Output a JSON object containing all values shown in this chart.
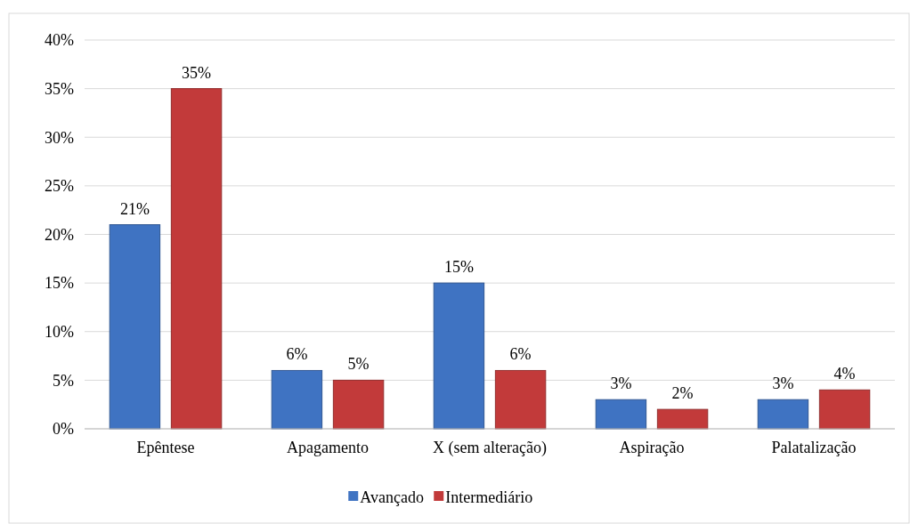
{
  "chart_data": {
    "type": "bar",
    "categories": [
      "Epêntese",
      "Apagamento",
      "X (sem alteração)",
      "Aspiração",
      "Palatalização"
    ],
    "series": [
      {
        "name": "Avançado",
        "color": "#3f73c2",
        "values": [
          21,
          6,
          15,
          3,
          3
        ]
      },
      {
        "name": "Intermediário",
        "color": "#c23a3a",
        "values": [
          35,
          5,
          6,
          2,
          4
        ]
      }
    ],
    "ylim": [
      0,
      40
    ],
    "yticks": [
      {
        "value": 0,
        "label": "0%"
      },
      {
        "value": 5,
        "label": "5%"
      },
      {
        "value": 10,
        "label": "10%"
      },
      {
        "value": 15,
        "label": "15%"
      },
      {
        "value": 20,
        "label": "20%"
      },
      {
        "value": 25,
        "label": "25%"
      },
      {
        "value": 30,
        "label": "30%"
      },
      {
        "value": 35,
        "label": "35%"
      },
      {
        "value": 40,
        "label": "40%"
      }
    ],
    "value_labels": [
      [
        "21%",
        "6%",
        "15%",
        "3%",
        "3%"
      ],
      [
        "35%",
        "5%",
        "6%",
        "2%",
        "4%"
      ]
    ],
    "grid": "y",
    "legend": "bottom"
  }
}
